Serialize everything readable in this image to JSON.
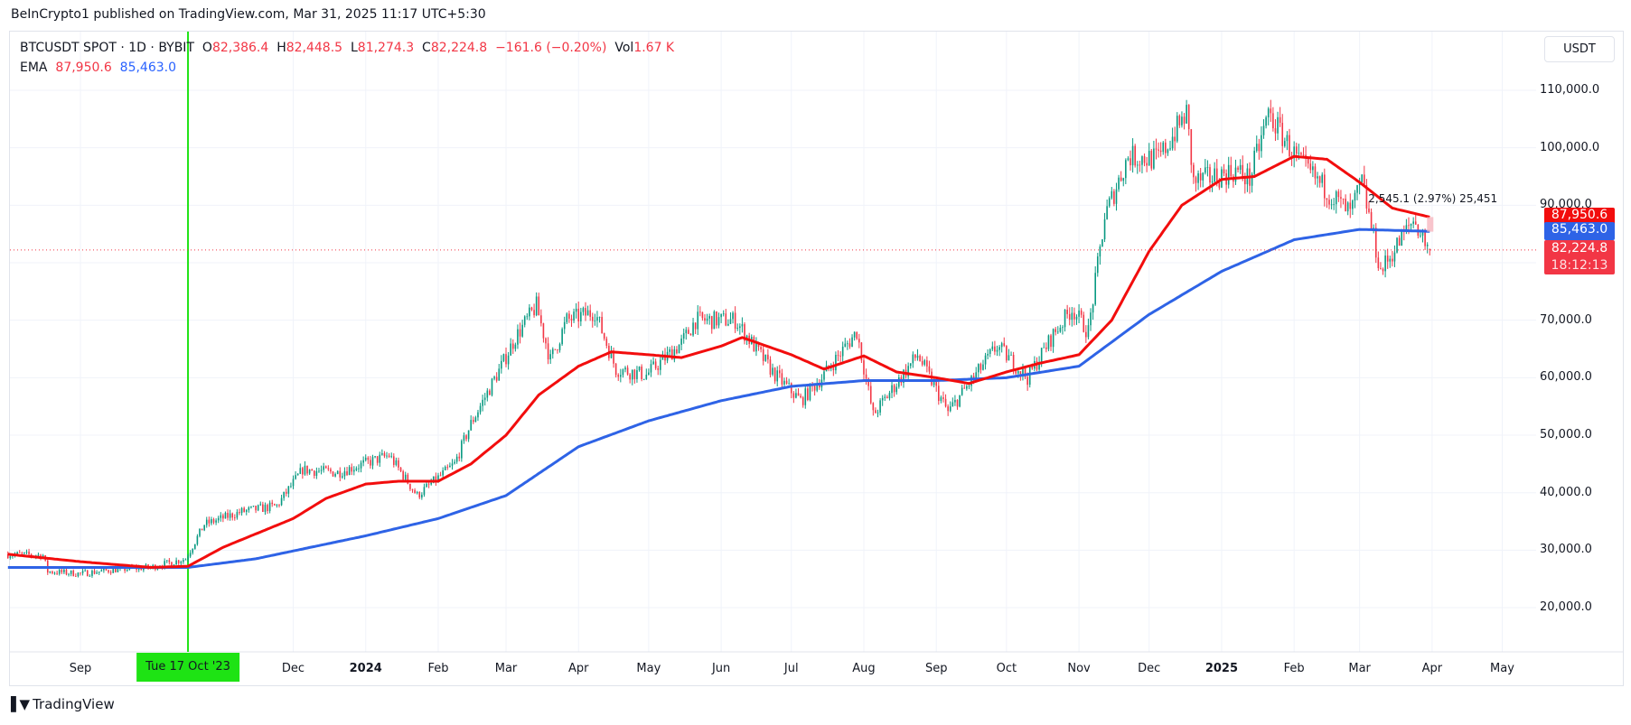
{
  "publication": "BeInCrypto1 published on TradingView.com, Mar 31, 2025 11:17 UTC+5:30",
  "legend": {
    "symbol": "BTCUSDT SPOT · 1D · BYBIT",
    "o_label": "O",
    "o": "82,386.4",
    "h_label": "H",
    "h": "82,448.5",
    "l_label": "L",
    "l": "81,274.3",
    "c_label": "C",
    "c": "82,224.8",
    "change": "−161.6 (−0.20%)",
    "vol_label": "Vol",
    "vol": "1.67 K",
    "ema_label": "EMA",
    "ema_fast": "87,950.6",
    "ema_slow": "85,463.0"
  },
  "currency_button": "USDT",
  "price_tags": {
    "ema_fast": "87,950.6",
    "ema_slow": "85,463.0",
    "last_price": "82,224.8",
    "countdown": "18:12:13"
  },
  "measure_label": "2,545.1 (2.97%) 25,451",
  "cursor_date": "Tue 17 Oct '23",
  "branding": "TradingView",
  "colors": {
    "up": "#089981",
    "down": "#f23645",
    "ema_fast": "#f20d0d",
    "ema_slow": "#2e63e6",
    "cursor": "#1ee314",
    "last_price": "#f23645"
  },
  "chart_data": {
    "type": "candlestick",
    "title": "",
    "ylim": [
      10000,
      115000
    ],
    "grid": true,
    "y_ticks": [
      "110,000.0",
      "100,000.0",
      "90,000.0",
      "70,000.0",
      "60,000.0",
      "50,000.0",
      "40,000.0",
      "30,000.0",
      "20,000.0"
    ],
    "y_tick_values": [
      110000,
      100000,
      90000,
      70000,
      60000,
      50000,
      40000,
      30000,
      20000
    ],
    "x_ticks": [
      {
        "date": "2023-09-01",
        "label": "Sep"
      },
      {
        "date": "2023-12-01",
        "label": "Dec"
      },
      {
        "date": "2024-01-01",
        "label": "2024",
        "bold": true
      },
      {
        "date": "2024-02-01",
        "label": "Feb"
      },
      {
        "date": "2024-03-01",
        "label": "Mar"
      },
      {
        "date": "2024-04-01",
        "label": "Apr"
      },
      {
        "date": "2024-05-01",
        "label": "May"
      },
      {
        "date": "2024-06-01",
        "label": "Jun"
      },
      {
        "date": "2024-07-01",
        "label": "Jul"
      },
      {
        "date": "2024-08-01",
        "label": "Aug"
      },
      {
        "date": "2024-09-01",
        "label": "Sep"
      },
      {
        "date": "2024-10-01",
        "label": "Oct"
      },
      {
        "date": "2024-11-01",
        "label": "Nov"
      },
      {
        "date": "2024-12-01",
        "label": "Dec"
      },
      {
        "date": "2025-01-01",
        "label": "2025",
        "bold": true
      },
      {
        "date": "2025-02-01",
        "label": "Feb"
      },
      {
        "date": "2025-03-01",
        "label": "Mar"
      },
      {
        "date": "2025-04-01",
        "label": "Apr"
      },
      {
        "date": "2025-05-01",
        "label": "May"
      }
    ],
    "cursor_date": "2023-10-17",
    "last": {
      "date": "2025-03-31",
      "open": 82386.4,
      "high": 82448.5,
      "low": 81274.3,
      "close": 82224.8
    },
    "price_path_approx": [
      [
        "2023-08-01",
        29300
      ],
      [
        "2023-08-16",
        29100
      ],
      [
        "2023-08-18",
        26300
      ],
      [
        "2023-09-01",
        25900
      ],
      [
        "2023-09-15",
        26600
      ],
      [
        "2023-10-01",
        27000
      ],
      [
        "2023-10-16",
        28500
      ],
      [
        "2023-10-24",
        34500
      ],
      [
        "2023-11-09",
        36700
      ],
      [
        "2023-11-24",
        37700
      ],
      [
        "2023-12-05",
        44000
      ],
      [
        "2023-12-20",
        43500
      ],
      [
        "2024-01-11",
        46500
      ],
      [
        "2024-01-23",
        39500
      ],
      [
        "2024-02-08",
        45000
      ],
      [
        "2024-02-15",
        52000
      ],
      [
        "2024-02-28",
        62000
      ],
      [
        "2024-03-05",
        67000
      ],
      [
        "2024-03-14",
        72500
      ],
      [
        "2024-03-20",
        63000
      ],
      [
        "2024-03-27",
        70000
      ],
      [
        "2024-04-08",
        71500
      ],
      [
        "2024-04-17",
        61500
      ],
      [
        "2024-04-30",
        60500
      ],
      [
        "2024-05-15",
        66000
      ],
      [
        "2024-05-21",
        70000
      ],
      [
        "2024-06-07",
        70000
      ],
      [
        "2024-06-24",
        60500
      ],
      [
        "2024-07-05",
        56000
      ],
      [
        "2024-07-14",
        60000
      ],
      [
        "2024-07-29",
        68000
      ],
      [
        "2024-08-05",
        53500
      ],
      [
        "2024-08-24",
        64000
      ],
      [
        "2024-09-06",
        54000
      ],
      [
        "2024-09-27",
        65500
      ],
      [
        "2024-10-10",
        60000
      ],
      [
        "2024-10-21",
        67500
      ],
      [
        "2024-10-29",
        72000
      ],
      [
        "2024-11-05",
        68000
      ],
      [
        "2024-11-12",
        88000
      ],
      [
        "2024-11-22",
        98500
      ],
      [
        "2024-12-05",
        98000
      ],
      [
        "2024-12-17",
        106000
      ],
      [
        "2024-12-20",
        94000
      ],
      [
        "2025-01-07",
        96000
      ],
      [
        "2025-01-13",
        94500
      ],
      [
        "2025-01-21",
        106000
      ],
      [
        "2025-02-03",
        97500
      ],
      [
        "2025-02-25",
        88500
      ],
      [
        "2025-03-02",
        94000
      ],
      [
        "2025-03-10",
        78500
      ],
      [
        "2025-03-24",
        87500
      ],
      [
        "2025-03-31",
        82224.8
      ]
    ],
    "series": [
      {
        "name": "EMA",
        "color": "#f20d0d",
        "points": [
          [
            "2023-08-01",
            29300
          ],
          [
            "2023-09-01",
            28000
          ],
          [
            "2023-10-01",
            27000
          ],
          [
            "2023-10-17",
            27200
          ],
          [
            "2023-11-01",
            30500
          ],
          [
            "2023-12-01",
            35500
          ],
          [
            "2023-12-15",
            39000
          ],
          [
            "2024-01-01",
            41500
          ],
          [
            "2024-01-15",
            42000
          ],
          [
            "2024-02-01",
            42000
          ],
          [
            "2024-02-15",
            45000
          ],
          [
            "2024-03-01",
            50000
          ],
          [
            "2024-03-15",
            57000
          ],
          [
            "2024-04-01",
            62000
          ],
          [
            "2024-04-15",
            64500
          ],
          [
            "2024-05-01",
            64000
          ],
          [
            "2024-05-15",
            63500
          ],
          [
            "2024-06-01",
            65500
          ],
          [
            "2024-06-10",
            67000
          ],
          [
            "2024-07-01",
            64000
          ],
          [
            "2024-07-15",
            61500
          ],
          [
            "2024-08-01",
            63800
          ],
          [
            "2024-08-15",
            61000
          ],
          [
            "2024-09-01",
            60000
          ],
          [
            "2024-09-15",
            59000
          ],
          [
            "2024-10-01",
            61000
          ],
          [
            "2024-10-15",
            62500
          ],
          [
            "2024-11-01",
            64000
          ],
          [
            "2024-11-15",
            70000
          ],
          [
            "2024-12-01",
            82000
          ],
          [
            "2024-12-15",
            90000
          ],
          [
            "2025-01-01",
            94500
          ],
          [
            "2025-01-15",
            95000
          ],
          [
            "2025-02-01",
            98500
          ],
          [
            "2025-02-15",
            98000
          ],
          [
            "2025-03-01",
            94000
          ],
          [
            "2025-03-15",
            89500
          ],
          [
            "2025-03-31",
            87950.6
          ]
        ]
      },
      {
        "name": "EMA",
        "color": "#2e63e6",
        "points": [
          [
            "2023-08-01",
            27000
          ],
          [
            "2023-10-17",
            27000
          ],
          [
            "2023-11-15",
            28500
          ],
          [
            "2024-01-01",
            32500
          ],
          [
            "2024-02-01",
            35500
          ],
          [
            "2024-03-01",
            39500
          ],
          [
            "2024-04-01",
            48000
          ],
          [
            "2024-05-01",
            52500
          ],
          [
            "2024-06-01",
            56000
          ],
          [
            "2024-07-01",
            58500
          ],
          [
            "2024-08-01",
            59500
          ],
          [
            "2024-09-01",
            59500
          ],
          [
            "2024-10-01",
            60000
          ],
          [
            "2024-11-01",
            62000
          ],
          [
            "2024-12-01",
            71000
          ],
          [
            "2025-01-01",
            78500
          ],
          [
            "2025-02-01",
            84000
          ],
          [
            "2025-03-01",
            85800
          ],
          [
            "2025-03-31",
            85463.0
          ]
        ]
      }
    ]
  }
}
